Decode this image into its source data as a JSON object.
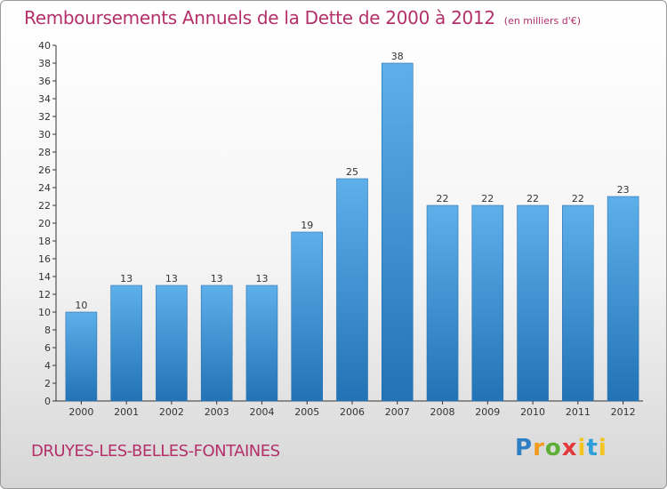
{
  "chart_data": {
    "type": "bar",
    "title": "Remboursements Annuels de la Dette de 2000 à 2012",
    "subtitle": "(en milliers d'€)",
    "categories": [
      "2000",
      "2001",
      "2002",
      "2003",
      "2004",
      "2005",
      "2006",
      "2007",
      "2008",
      "2009",
      "2010",
      "2011",
      "2012"
    ],
    "values": [
      10,
      13,
      13,
      13,
      13,
      19,
      25,
      38,
      22,
      22,
      22,
      22,
      23
    ],
    "ylim": [
      0,
      40
    ],
    "ytick_step": 2,
    "grid": false,
    "bar_color": "#3a8fd6",
    "bar_color_light": "#5db0ea",
    "bar_color_dark": "#2273b5"
  },
  "commune": "DRUYES-LES-BELLES-FONTAINES",
  "logo": "Proxiti",
  "colors": {
    "title": "#b4306a",
    "axis": "#333333"
  }
}
